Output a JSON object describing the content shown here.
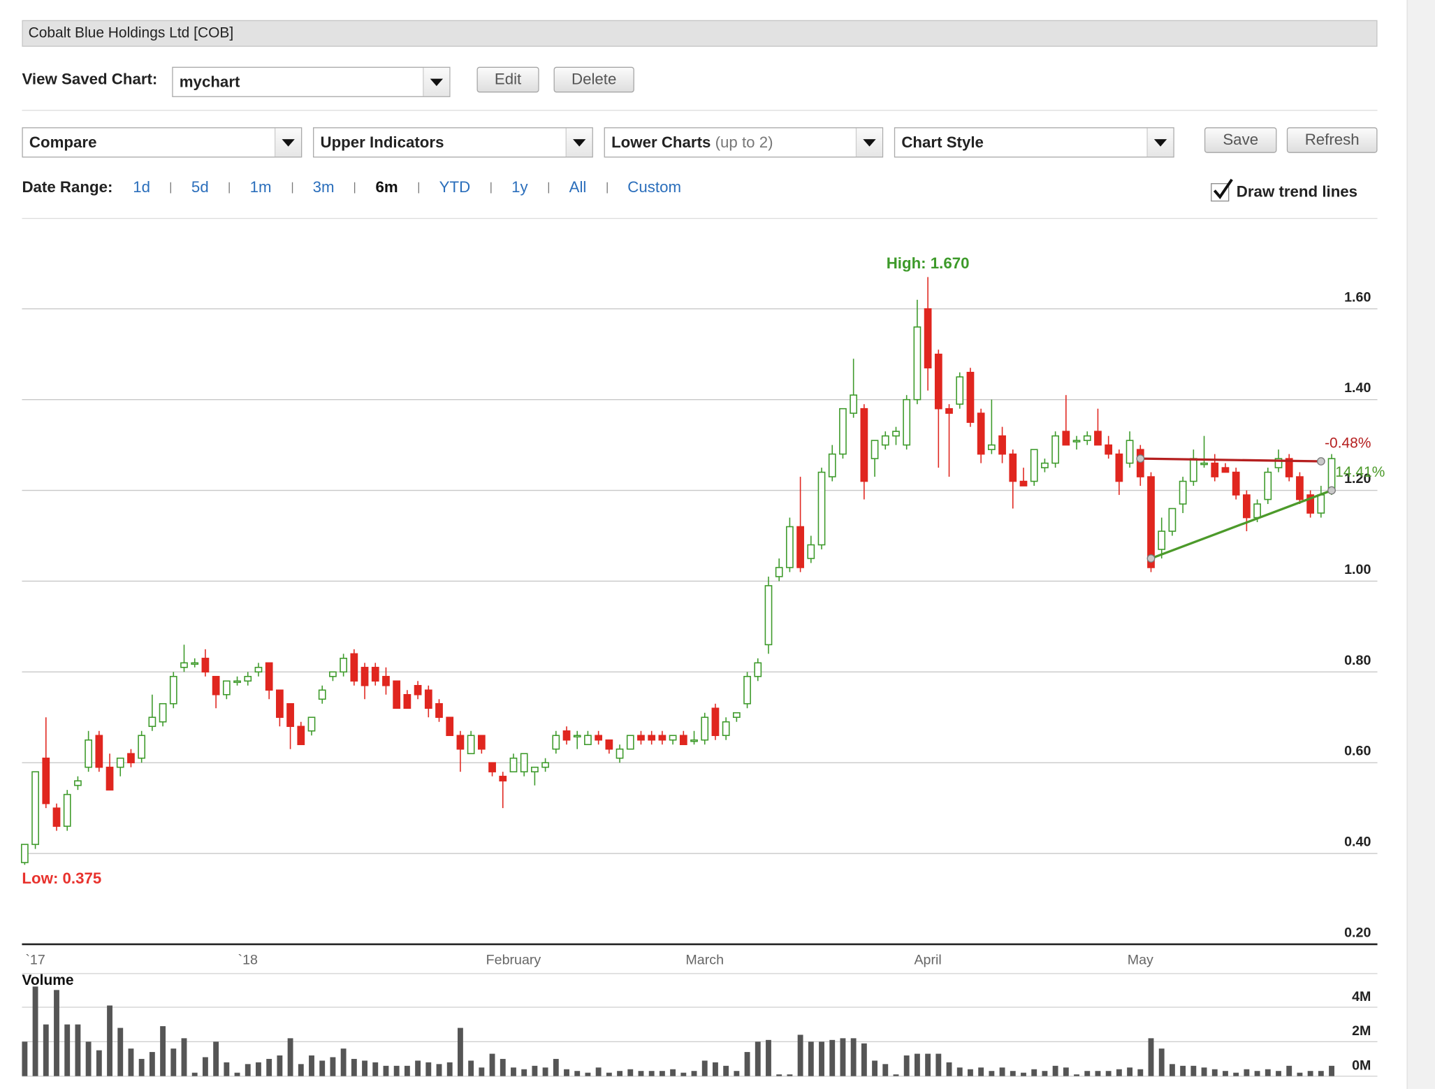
{
  "ui": {
    "header": {
      "title": "Cobalt Blue Holdings Ltd [COB]"
    },
    "saved_chart": {
      "label": "View Saved Chart:",
      "value": "mychart",
      "buttons": [
        "Edit",
        "Delete"
      ]
    },
    "toolbar": {
      "compare": "Compare",
      "upper": "Upper Indicators",
      "lower": {
        "label": "Lower Charts",
        "hint": "(up to 2)"
      },
      "style": "Chart Style",
      "buttons": [
        "Save",
        "Refresh"
      ]
    },
    "date_range": {
      "label": "Date Range:",
      "options": [
        "1d",
        "5d",
        "1m",
        "3m",
        "6m",
        "YTD",
        "1y",
        "All",
        "Custom"
      ],
      "selected": "6m"
    },
    "trend_toggle": {
      "label": "Draw trend lines",
      "checked": true
    }
  },
  "chart_data": {
    "type": "candlestick",
    "categories": [
      null,
      "`17",
      null,
      null,
      null,
      null,
      null,
      null,
      null,
      null,
      null,
      null,
      null,
      null,
      null,
      null,
      null,
      null,
      null,
      null,
      null,
      "`18",
      null,
      null,
      null,
      null,
      null,
      null,
      null,
      null,
      null,
      null,
      null,
      null,
      null,
      null,
      null,
      null,
      null,
      null,
      null,
      null,
      null,
      null,
      null,
      null,
      "February",
      null,
      null,
      null,
      null,
      null,
      null,
      null,
      null,
      null,
      null,
      null,
      null,
      null,
      null,
      null,
      null,
      null,
      "March",
      null,
      null,
      null,
      null,
      null,
      null,
      null,
      null,
      null,
      null,
      null,
      null,
      null,
      null,
      null,
      null,
      null,
      null,
      null,
      null,
      "April",
      null,
      null,
      null,
      null,
      null,
      null,
      null,
      null,
      null,
      null,
      null,
      null,
      null,
      null,
      null,
      null,
      null,
      null,
      null,
      "May",
      null,
      null,
      null,
      null,
      null,
      null,
      null,
      null,
      null,
      null,
      null,
      null,
      null,
      null,
      null,
      null,
      null,
      null
    ],
    "open": [
      0.38,
      0.42,
      0.61,
      0.5,
      0.46,
      0.55,
      0.59,
      0.66,
      0.59,
      0.59,
      0.62,
      0.61,
      0.68,
      0.69,
      0.73,
      0.81,
      0.82,
      0.83,
      0.79,
      0.75,
      0.78,
      0.78,
      0.8,
      0.82,
      0.76,
      0.73,
      0.68,
      0.67,
      0.74,
      0.79,
      0.8,
      0.84,
      0.81,
      0.81,
      0.79,
      0.78,
      0.75,
      0.77,
      0.76,
      0.73,
      0.7,
      0.66,
      0.62,
      0.66,
      0.6,
      0.57,
      0.58,
      0.58,
      0.58,
      0.59,
      0.63,
      0.67,
      0.66,
      0.64,
      0.66,
      0.65,
      0.61,
      0.63,
      0.66,
      0.66,
      0.66,
      0.65,
      0.66,
      0.65,
      0.65,
      0.72,
      0.66,
      0.7,
      0.73,
      0.79,
      0.86,
      1.01,
      1.03,
      1.12,
      1.05,
      1.08,
      1.23,
      1.28,
      1.37,
      1.38,
      1.27,
      1.3,
      1.32,
      1.3,
      1.4,
      1.6,
      1.5,
      1.38,
      1.39,
      1.46,
      1.37,
      1.29,
      1.32,
      1.28,
      1.22,
      1.22,
      1.25,
      1.26,
      1.33,
      1.31,
      1.31,
      1.33,
      1.3,
      1.28,
      1.26,
      1.29,
      1.23,
      1.07,
      1.11,
      1.17,
      1.22,
      1.26,
      1.26,
      1.25,
      1.24,
      1.19,
      1.14,
      1.18,
      1.25,
      1.27,
      1.23,
      1.19,
      1.15,
      1.2
    ],
    "high": [
      0.42,
      0.58,
      0.7,
      0.51,
      0.54,
      0.57,
      0.67,
      0.67,
      0.62,
      0.61,
      0.63,
      0.67,
      0.75,
      0.73,
      0.8,
      0.86,
      0.83,
      0.85,
      0.79,
      0.78,
      0.79,
      0.8,
      0.82,
      0.82,
      0.76,
      0.73,
      0.69,
      0.7,
      0.77,
      0.8,
      0.84,
      0.85,
      0.82,
      0.82,
      0.81,
      0.78,
      0.76,
      0.78,
      0.77,
      0.74,
      0.7,
      0.67,
      0.67,
      0.66,
      0.6,
      0.58,
      0.62,
      0.62,
      0.59,
      0.61,
      0.67,
      0.68,
      0.67,
      0.67,
      0.67,
      0.65,
      0.64,
      0.66,
      0.67,
      0.67,
      0.67,
      0.66,
      0.67,
      0.67,
      0.71,
      0.73,
      0.7,
      0.71,
      0.8,
      0.83,
      1.01,
      1.05,
      1.14,
      1.23,
      1.1,
      1.25,
      1.3,
      1.38,
      1.49,
      1.39,
      1.31,
      1.33,
      1.34,
      1.41,
      1.62,
      1.67,
      1.51,
      1.39,
      1.46,
      1.47,
      1.38,
      1.4,
      1.34,
      1.29,
      1.25,
      1.29,
      1.27,
      1.33,
      1.41,
      1.32,
      1.33,
      1.38,
      1.32,
      1.29,
      1.33,
      1.3,
      1.24,
      1.14,
      1.16,
      1.23,
      1.29,
      1.32,
      1.28,
      1.26,
      1.25,
      1.2,
      1.18,
      1.25,
      1.29,
      1.28,
      1.24,
      1.2,
      1.21,
      1.28
    ],
    "low": [
      0.375,
      0.41,
      0.5,
      0.45,
      0.45,
      0.54,
      0.58,
      0.58,
      0.54,
      0.57,
      0.59,
      0.6,
      0.67,
      0.68,
      0.72,
      0.8,
      0.81,
      0.79,
      0.72,
      0.74,
      0.77,
      0.77,
      0.79,
      0.74,
      0.68,
      0.63,
      0.64,
      0.66,
      0.73,
      0.78,
      0.79,
      0.77,
      0.74,
      0.77,
      0.75,
      0.72,
      0.72,
      0.74,
      0.7,
      0.69,
      0.66,
      0.58,
      0.62,
      0.62,
      0.57,
      0.5,
      0.58,
      0.57,
      0.55,
      0.58,
      0.62,
      0.64,
      0.63,
      0.64,
      0.64,
      0.62,
      0.6,
      0.63,
      0.64,
      0.64,
      0.64,
      0.64,
      0.64,
      0.64,
      0.64,
      0.65,
      0.65,
      0.69,
      0.72,
      0.78,
      0.84,
      1.0,
      1.02,
      1.02,
      1.04,
      1.07,
      1.22,
      1.27,
      1.36,
      1.18,
      1.23,
      1.29,
      1.3,
      1.29,
      1.39,
      1.42,
      1.25,
      1.23,
      1.38,
      1.34,
      1.26,
      1.28,
      1.26,
      1.16,
      1.21,
      1.21,
      1.24,
      1.25,
      1.3,
      1.29,
      1.3,
      1.3,
      1.27,
      1.19,
      1.25,
      1.21,
      1.02,
      1.05,
      1.1,
      1.15,
      1.21,
      1.25,
      1.22,
      1.24,
      1.18,
      1.11,
      1.13,
      1.17,
      1.24,
      1.22,
      1.17,
      1.14,
      1.14,
      1.19
    ],
    "close": [
      0.42,
      0.58,
      0.51,
      0.46,
      0.53,
      0.56,
      0.65,
      0.59,
      0.54,
      0.61,
      0.6,
      0.66,
      0.7,
      0.73,
      0.79,
      0.82,
      0.82,
      0.8,
      0.75,
      0.78,
      0.78,
      0.79,
      0.81,
      0.76,
      0.7,
      0.68,
      0.64,
      0.7,
      0.76,
      0.8,
      0.83,
      0.78,
      0.77,
      0.78,
      0.77,
      0.72,
      0.72,
      0.75,
      0.72,
      0.7,
      0.66,
      0.63,
      0.66,
      0.63,
      0.58,
      0.56,
      0.61,
      0.62,
      0.59,
      0.6,
      0.66,
      0.65,
      0.66,
      0.66,
      0.65,
      0.63,
      0.63,
      0.66,
      0.65,
      0.65,
      0.65,
      0.66,
      0.64,
      0.65,
      0.7,
      0.66,
      0.69,
      0.71,
      0.79,
      0.82,
      0.99,
      1.03,
      1.12,
      1.03,
      1.08,
      1.24,
      1.28,
      1.38,
      1.41,
      1.22,
      1.31,
      1.32,
      1.33,
      1.4,
      1.56,
      1.47,
      1.38,
      1.37,
      1.45,
      1.35,
      1.28,
      1.3,
      1.28,
      1.22,
      1.21,
      1.29,
      1.26,
      1.32,
      1.3,
      1.31,
      1.32,
      1.3,
      1.28,
      1.22,
      1.31,
      1.23,
      1.03,
      1.11,
      1.16,
      1.22,
      1.27,
      1.26,
      1.23,
      1.24,
      1.19,
      1.14,
      1.17,
      1.24,
      1.27,
      1.23,
      1.18,
      1.15,
      1.19,
      1.27
    ],
    "up_color": "#3d9a2a",
    "down_color": "#e0261f",
    "ylim": [
      0.2,
      1.78
    ],
    "yticks": [
      {
        "value": 0.2,
        "label": "0.20"
      },
      {
        "value": 0.4,
        "label": "0.40"
      },
      {
        "value": 0.6,
        "label": "0.60"
      },
      {
        "value": 0.8,
        "label": "0.80"
      },
      {
        "value": 1.0,
        "label": "1.00"
      },
      {
        "value": 1.2,
        "label": "1.20"
      },
      {
        "value": 1.4,
        "label": "1.40"
      },
      {
        "value": 1.6,
        "label": "1.60"
      }
    ],
    "grid": true,
    "high_label": "High: 1.670",
    "low_label": "Low: 0.375",
    "trend_lines": [
      {
        "label": "-0.48%",
        "color": "#b51f1f",
        "from": [
          105,
          1.27
        ],
        "to": [
          122,
          1.264
        ]
      },
      {
        "label": "14.41%",
        "color": "#4c9a2a",
        "from": [
          106,
          1.05
        ],
        "to": [
          123,
          1.2
        ]
      }
    ],
    "volume": {
      "title": "Volume",
      "color": "#555555",
      "values": [
        2.0,
        5.2,
        3.0,
        5.0,
        3.0,
        3.0,
        2.0,
        1.5,
        4.1,
        2.8,
        1.6,
        1.0,
        1.4,
        2.9,
        1.6,
        2.2,
        0.2,
        1.1,
        2.0,
        0.8,
        0.2,
        0.7,
        0.8,
        1.0,
        1.2,
        2.2,
        0.7,
        1.2,
        0.9,
        1.1,
        1.6,
        1.0,
        0.9,
        0.8,
        0.6,
        0.6,
        0.6,
        0.9,
        0.8,
        0.7,
        0.8,
        2.8,
        0.9,
        0.5,
        1.3,
        1.0,
        0.5,
        0.4,
        0.6,
        0.5,
        1.0,
        0.4,
        0.3,
        0.2,
        0.5,
        0.2,
        0.3,
        0.4,
        0.3,
        0.3,
        0.3,
        0.4,
        0.2,
        0.3,
        0.9,
        0.8,
        0.6,
        0.3,
        1.4,
        2.0,
        2.1,
        0.1,
        0.1,
        2.4,
        2.0,
        2.0,
        2.1,
        2.2,
        2.2,
        1.9,
        0.9,
        0.7,
        0.1,
        1.2,
        1.3,
        1.3,
        1.3,
        0.8,
        0.5,
        0.4,
        0.5,
        0.3,
        0.5,
        0.3,
        0.2,
        0.4,
        0.3,
        0.6,
        0.5,
        0.1,
        0.3,
        0.3,
        0.3,
        0.4,
        0.5,
        0.4,
        2.2,
        1.6,
        0.7,
        0.6,
        0.6,
        0.5,
        0.4,
        0.3,
        0.2,
        0.4,
        0.3,
        0.4,
        0.3,
        0.6,
        0.2,
        0.3,
        0.3,
        0.6
      ],
      "ylim": [
        0,
        5.9
      ],
      "yticks": [
        {
          "value": 0,
          "label": "0M"
        },
        {
          "value": 2,
          "label": "2M"
        },
        {
          "value": 4,
          "label": "4M"
        }
      ]
    }
  }
}
